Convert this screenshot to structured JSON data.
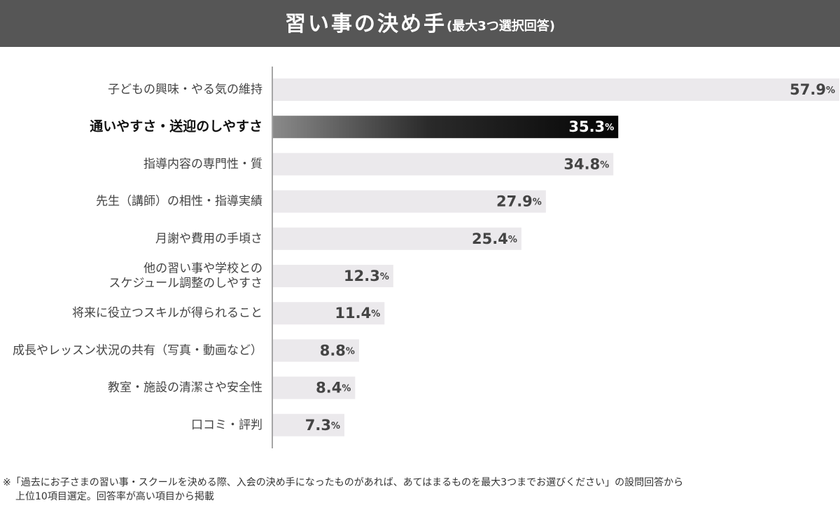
{
  "chart_data": {
    "type": "bar",
    "orientation": "horizontal",
    "title": "習い事の決め手",
    "subtitle": "(最大3つ選択回答)",
    "categories": [
      "子どもの興味・やる気の維持",
      "通いやすさ・送迎のしやすさ",
      "指導内容の専門性・質",
      "先生（講師）の相性・指導実績",
      "月謝や費用の手頃さ",
      [
        "他の習い事や学校との",
        "スケジュール調整のしやすさ"
      ],
      "将来に役立つスキルが得られること",
      "成長やレッスン状況の共有（写真・動画など）",
      "教室・施設の清潔さや安全性",
      "口コミ・評判"
    ],
    "values": [
      57.9,
      35.3,
      34.8,
      27.9,
      25.4,
      12.3,
      11.4,
      8.8,
      8.4,
      7.3
    ],
    "unit": "%",
    "color": "#ebe9ec",
    "highlight": 1,
    "highlight_color": "#111111",
    "notes": [
      "※「過去にお子さまの習い事・スクールを決める際、入会の決め手になったものがあれば、あてはまるものを最大3つまでお選びください」の設問回答から",
      "上位10項目選定。回答率が高い項目から掲載"
    ]
  }
}
